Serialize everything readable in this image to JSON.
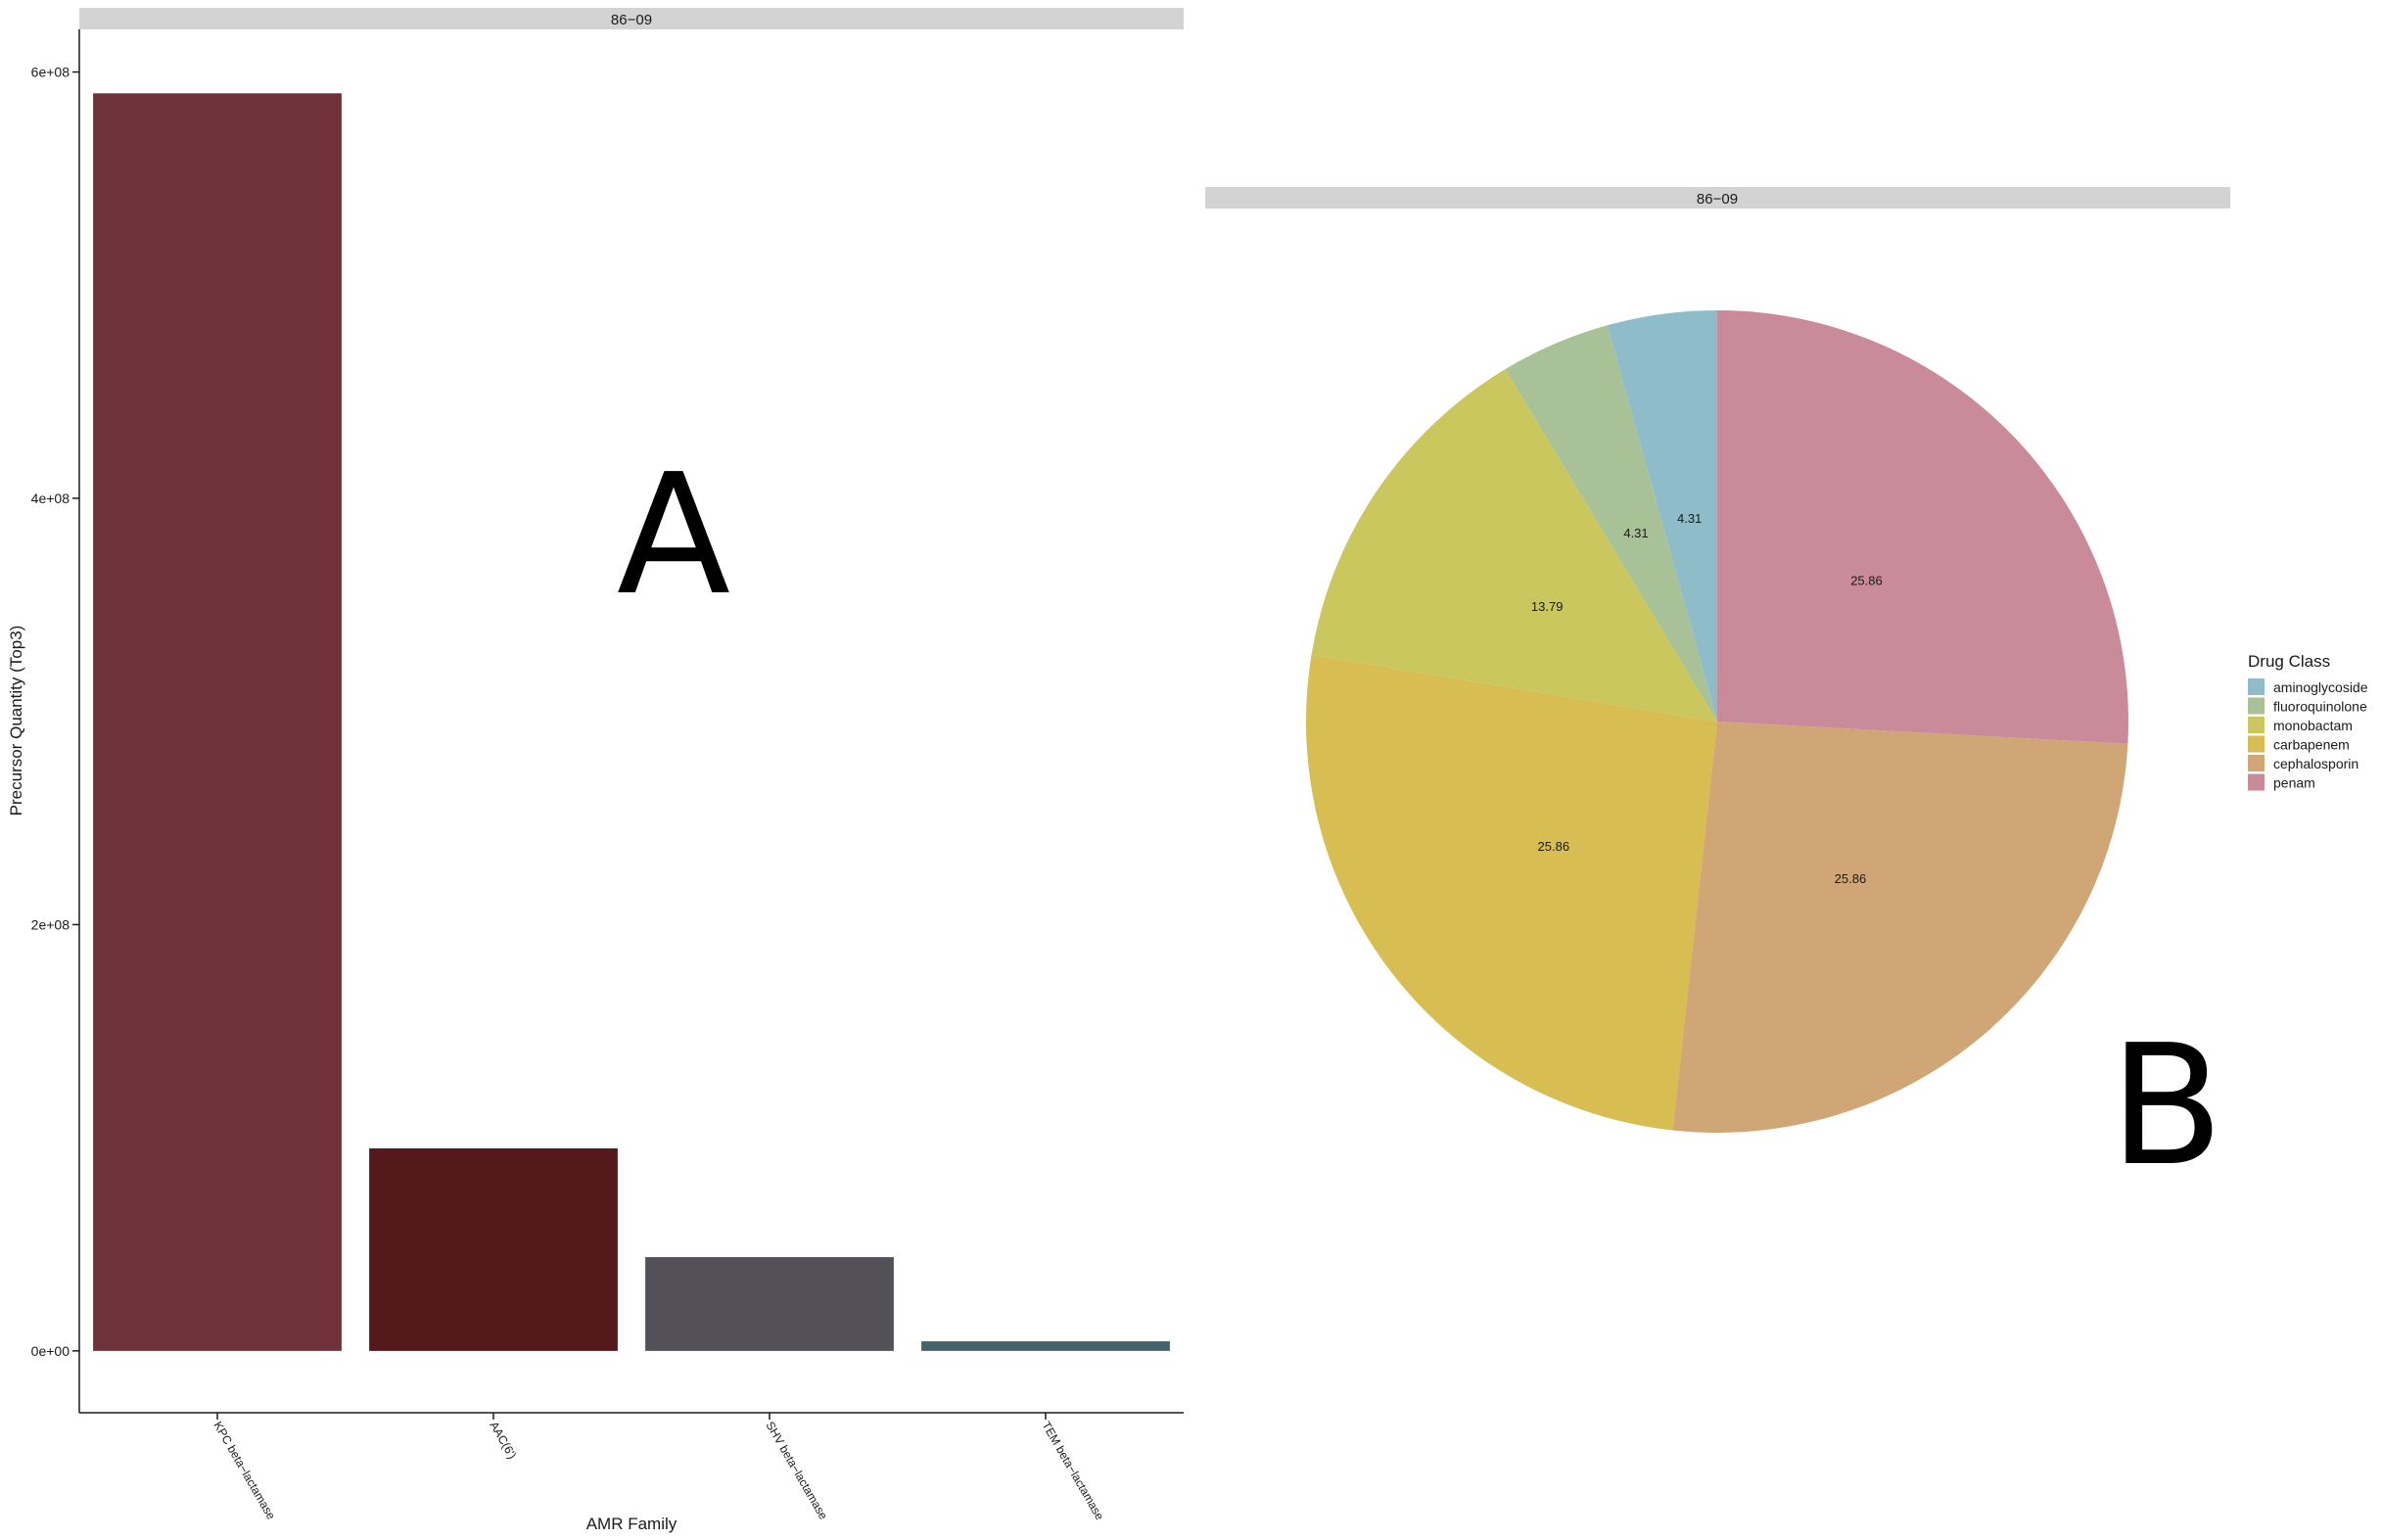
{
  "panel_labels": {
    "a": "A",
    "b": "B"
  },
  "chart_data": [
    {
      "type": "bar",
      "facet": "86−09",
      "xlabel": "AMR Family",
      "ylabel": "Precursor Quantity (Top3)",
      "ylim": [
        -29000000,
        620000000
      ],
      "yticks": [
        0,
        200000000,
        400000000,
        600000000
      ],
      "ytick_labels": [
        "0e+00",
        "2e+08",
        "4e+08",
        "6e+08"
      ],
      "categories": [
        "KPC beta−lactamase",
        "AAC(6')",
        "SHV beta−lactamase",
        "TEM beta−lactamase"
      ],
      "values": [
        590000000,
        95000000,
        44000000,
        4500000
      ],
      "colors": [
        "#6e3238",
        "#55191c",
        "#535157",
        "#45626b"
      ],
      "grid": false,
      "legend": "none"
    },
    {
      "type": "pie",
      "facet": "86−09",
      "legend_title": "Drug Class",
      "legend_position": "right",
      "categories": [
        "aminoglycoside",
        "fluoroquinolone",
        "monobactam",
        "carbapenem",
        "cephalosporin",
        "penam"
      ],
      "values": [
        4.31,
        4.31,
        13.79,
        25.86,
        25.86,
        25.86
      ],
      "labels": [
        "4.31",
        "4.31",
        "13.79",
        "25.86",
        "25.86",
        "25.86"
      ],
      "colors": [
        "#8fbcc9",
        "#a9c196",
        "#c9c75d",
        "#d8bd52",
        "#d1a676",
        "#c98a99"
      ]
    }
  ]
}
